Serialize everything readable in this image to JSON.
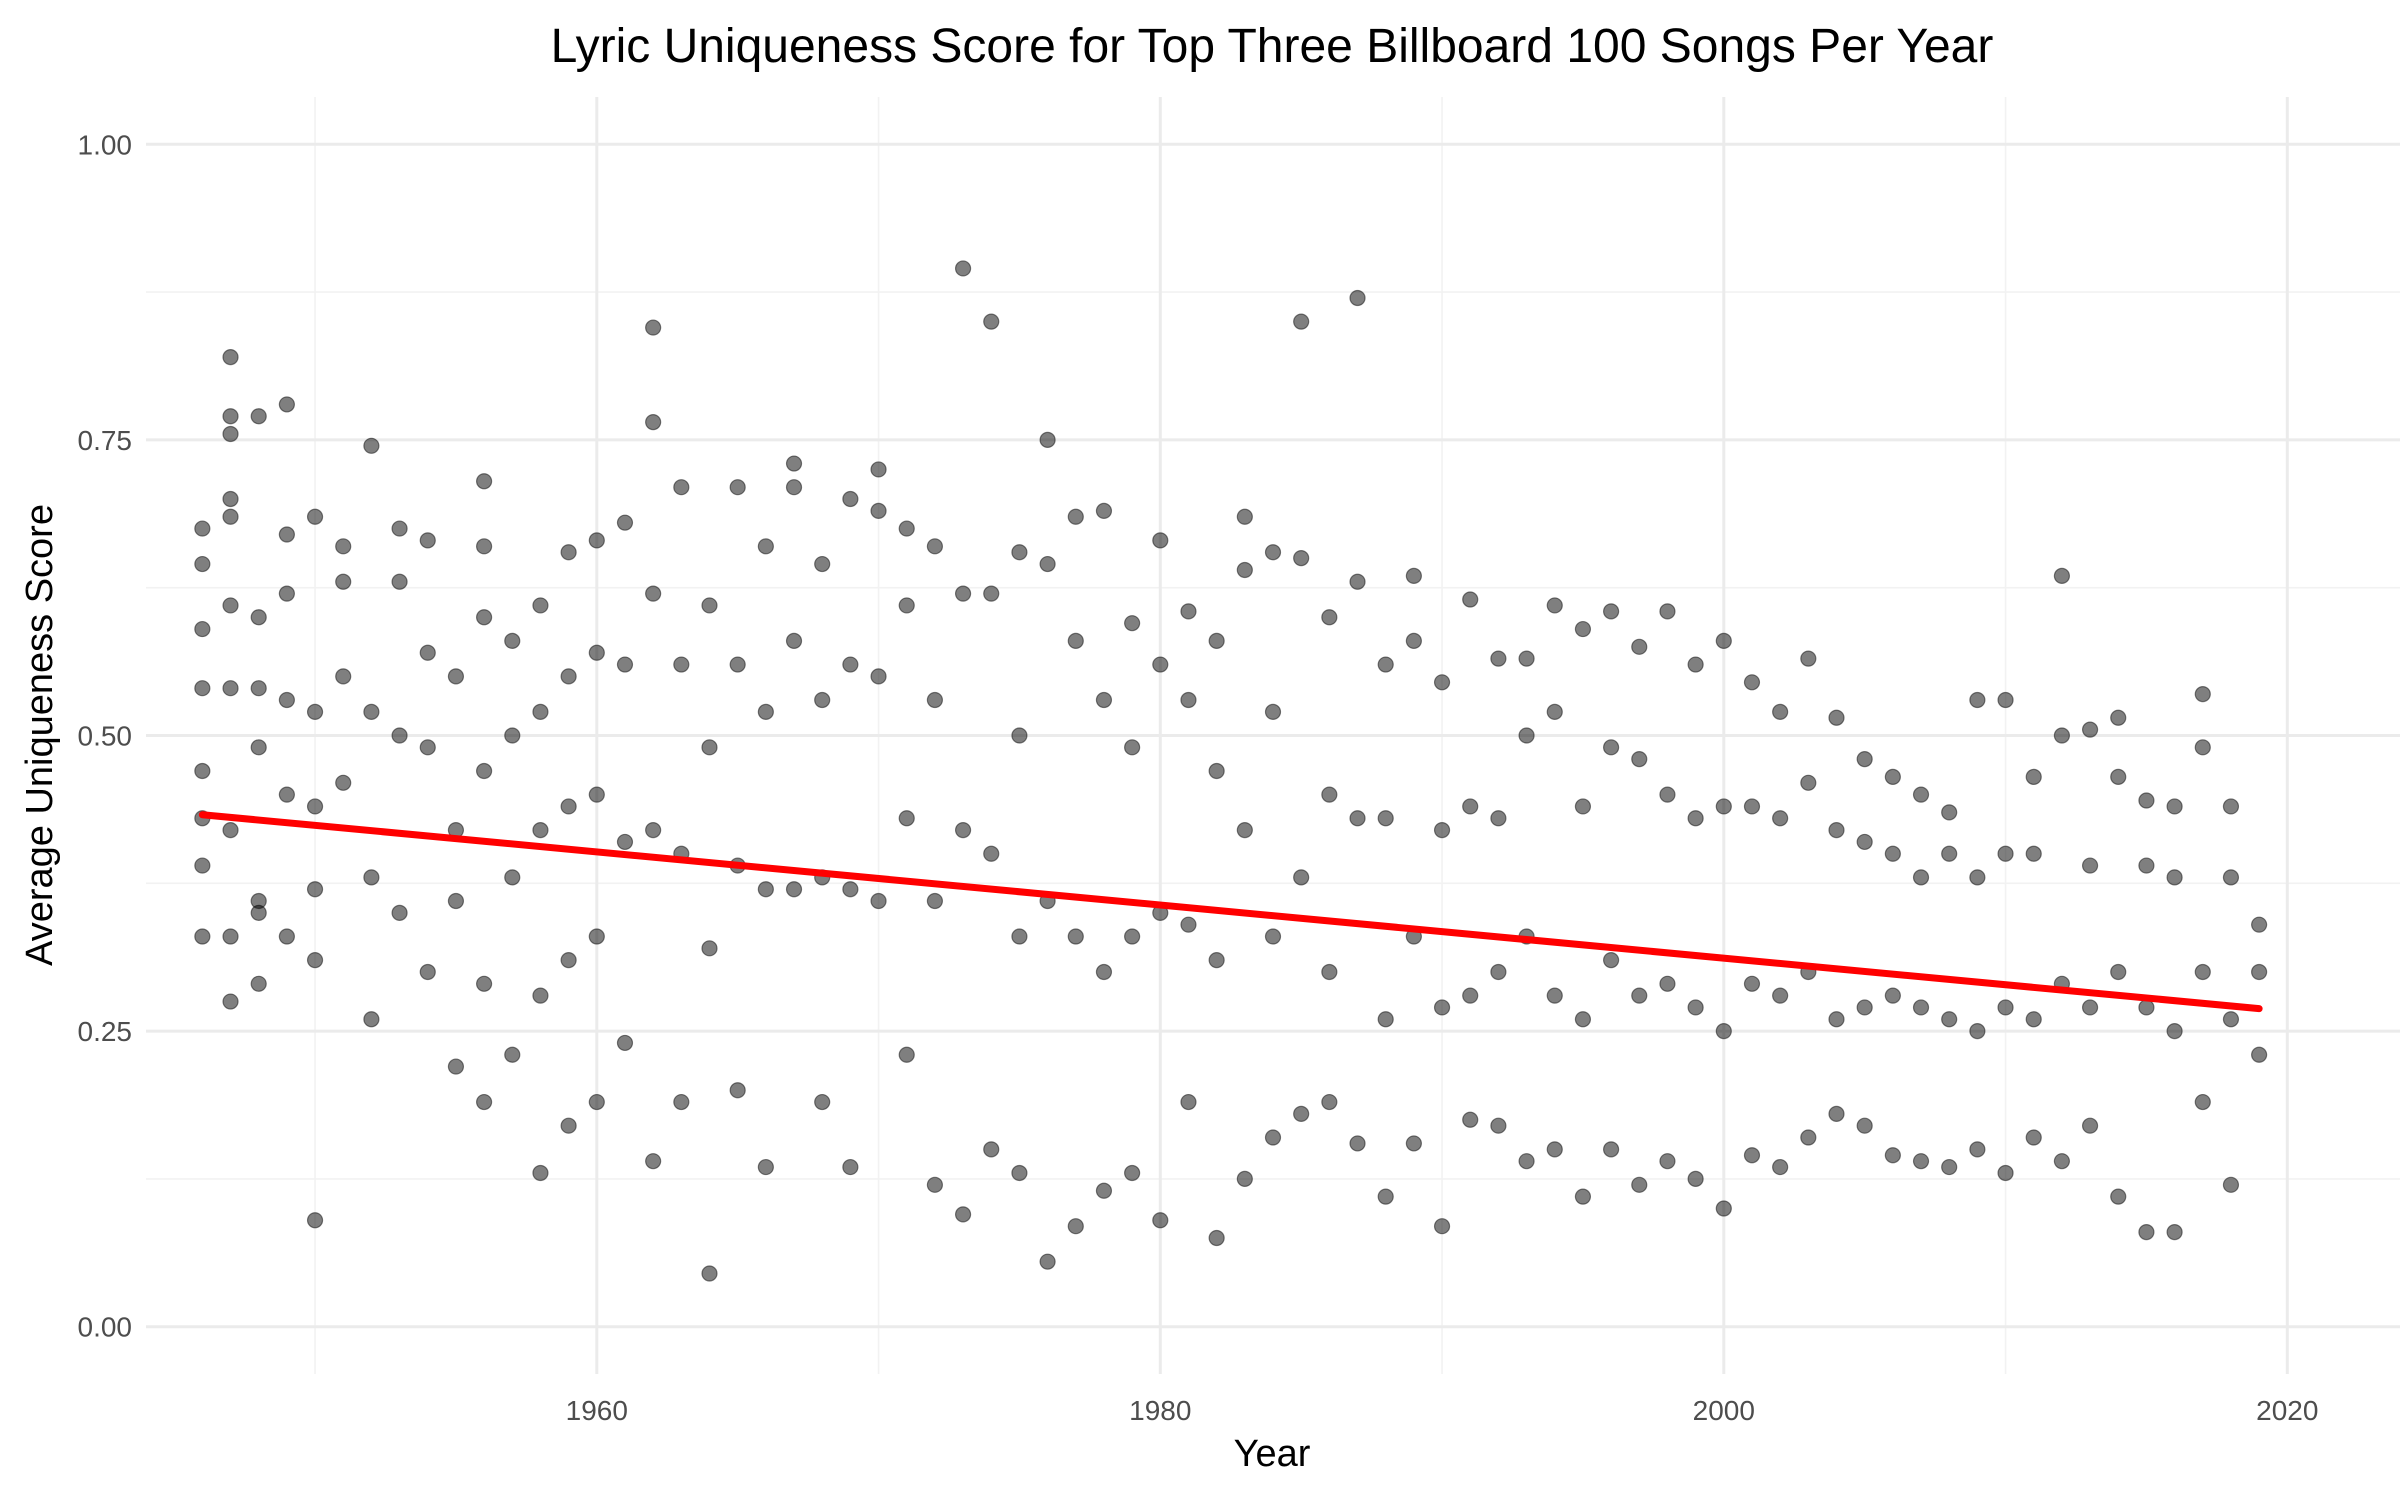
{
  "chart_data": {
    "type": "scatter",
    "title": "Lyric Uniqueness Score for Top Three Billboard 100 Songs Per Year",
    "xlabel": "Year",
    "ylabel": "Average Uniqueness Score",
    "xlim": [
      1944,
      2024
    ],
    "ylim": [
      -0.04,
      1.04
    ],
    "x_ticks": [
      1960,
      1980,
      2000,
      2020
    ],
    "x_tick_labels": [
      "1960",
      "1980",
      "2000",
      "2020"
    ],
    "y_ticks": [
      0.0,
      0.25,
      0.5,
      0.75,
      1.0
    ],
    "y_tick_labels": [
      "0.00",
      "0.25",
      "0.50",
      "0.75",
      "1.00"
    ],
    "grid": true,
    "legend": "none",
    "point_color": "#000000",
    "trend_color": "#ff0000",
    "series": [
      {
        "kind": "points",
        "x": [
          1946,
          1946,
          1946,
          1946,
          1946,
          1946,
          1946,
          1946,
          1947,
          1947,
          1947,
          1947,
          1947,
          1947,
          1947,
          1947,
          1947,
          1947,
          1948,
          1948,
          1948,
          1948,
          1948,
          1948,
          1948,
          1949,
          1949,
          1949,
          1949,
          1949,
          1949,
          1950,
          1950,
          1950,
          1950,
          1950,
          1950,
          1951,
          1951,
          1951,
          1951,
          1952,
          1952,
          1952,
          1952,
          1953,
          1953,
          1953,
          1953,
          1954,
          1954,
          1954,
          1954,
          1955,
          1955,
          1955,
          1955,
          1956,
          1956,
          1956,
          1956,
          1956,
          1956,
          1957,
          1957,
          1957,
          1957,
          1958,
          1958,
          1958,
          1958,
          1958,
          1959,
          1959,
          1959,
          1959,
          1959,
          1960,
          1960,
          1960,
          1960,
          1960,
          1961,
          1961,
          1961,
          1961,
          1962,
          1962,
          1962,
          1962,
          1962,
          1963,
          1963,
          1963,
          1963,
          1964,
          1964,
          1964,
          1964,
          1965,
          1965,
          1965,
          1965,
          1966,
          1966,
          1966,
          1966,
          1967,
          1967,
          1967,
          1967,
          1968,
          1968,
          1968,
          1968,
          1969,
          1969,
          1969,
          1969,
          1970,
          1970,
          1970,
          1970,
          1971,
          1971,
          1971,
          1971,
          1972,
          1972,
          1972,
          1972,
          1973,
          1973,
          1973,
          1973,
          1974,
          1974,
          1974,
          1974,
          1975,
          1975,
          1975,
          1975,
          1976,
          1976,
          1976,
          1976,
          1977,
          1977,
          1977,
          1977,
          1978,
          1978,
          1978,
          1978,
          1979,
          1979,
          1979,
          1979,
          1980,
          1980,
          1980,
          1980,
          1981,
          1981,
          1981,
          1981,
          1982,
          1982,
          1982,
          1982,
          1983,
          1983,
          1983,
          1983,
          1984,
          1984,
          1984,
          1984,
          1985,
          1985,
          1985,
          1985,
          1986,
          1986,
          1986,
          1986,
          1987,
          1987,
          1987,
          1987,
          1988,
          1988,
          1988,
          1988,
          1989,
          1989,
          1989,
          1989,
          1990,
          1990,
          1990,
          1990,
          1991,
          1991,
          1991,
          1991,
          1992,
          1992,
          1992,
          1992,
          1993,
          1993,
          1993,
          1993,
          1994,
          1994,
          1994,
          1994,
          1995,
          1995,
          1995,
          1995,
          1996,
          1996,
          1996,
          1996,
          1997,
          1997,
          1997,
          1997,
          1998,
          1998,
          1998,
          1998,
          1999,
          1999,
          1999,
          1999,
          2000,
          2000,
          2000,
          2000,
          2001,
          2001,
          2001,
          2001,
          2002,
          2002,
          2002,
          2002,
          2003,
          2003,
          2003,
          2003,
          2004,
          2004,
          2004,
          2004,
          2005,
          2005,
          2005,
          2005,
          2006,
          2006,
          2006,
          2006,
          2007,
          2007,
          2007,
          2007,
          2008,
          2008,
          2008,
          2008,
          2009,
          2009,
          2009,
          2009,
          2010,
          2010,
          2010,
          2010,
          2011,
          2011,
          2011,
          2011,
          2012,
          2012,
          2012,
          2012,
          2013,
          2013,
          2013,
          2013,
          2014,
          2014,
          2014,
          2014,
          2015,
          2015,
          2015,
          2015,
          2016,
          2016,
          2016,
          2016,
          2017,
          2017,
          2017,
          2017,
          2018,
          2018,
          2018,
          2018,
          2019,
          2019,
          2019
        ],
        "y": [
          0.675,
          0.645,
          0.59,
          0.54,
          0.47,
          0.43,
          0.39,
          0.33,
          0.82,
          0.77,
          0.755,
          0.7,
          0.685,
          0.61,
          0.54,
          0.42,
          0.33,
          0.275,
          0.77,
          0.6,
          0.54,
          0.49,
          0.35,
          0.29,
          0.36,
          0.78,
          0.67,
          0.62,
          0.53,
          0.45,
          0.33,
          0.685,
          0.52,
          0.44,
          0.37,
          0.31,
          0.09,
          0.66,
          0.63,
          0.55,
          0.46,
          0.745,
          0.52,
          0.38,
          0.26,
          0.675,
          0.63,
          0.5,
          0.35,
          0.665,
          0.57,
          0.49,
          0.3,
          0.55,
          0.42,
          0.36,
          0.22,
          0.715,
          0.66,
          0.6,
          0.47,
          0.29,
          0.19,
          0.58,
          0.5,
          0.38,
          0.23,
          0.61,
          0.52,
          0.42,
          0.28,
          0.13,
          0.655,
          0.55,
          0.44,
          0.31,
          0.17,
          0.665,
          0.57,
          0.45,
          0.33,
          0.19,
          0.68,
          0.56,
          0.41,
          0.24,
          0.845,
          0.765,
          0.62,
          0.42,
          0.14,
          0.71,
          0.56,
          0.4,
          0.19,
          0.61,
          0.49,
          0.32,
          0.045,
          0.71,
          0.56,
          0.39,
          0.2,
          0.66,
          0.52,
          0.37,
          0.135,
          0.73,
          0.71,
          0.58,
          0.37,
          0.645,
          0.53,
          0.38,
          0.19,
          0.7,
          0.56,
          0.37,
          0.135,
          0.725,
          0.69,
          0.55,
          0.36,
          0.675,
          0.61,
          0.43,
          0.23,
          0.66,
          0.53,
          0.36,
          0.12,
          0.895,
          0.62,
          0.42,
          0.095,
          0.85,
          0.62,
          0.4,
          0.15,
          0.655,
          0.5,
          0.33,
          0.13,
          0.75,
          0.645,
          0.36,
          0.055,
          0.685,
          0.58,
          0.33,
          0.085,
          0.69,
          0.53,
          0.3,
          0.115,
          0.595,
          0.49,
          0.33,
          0.13,
          0.665,
          0.56,
          0.35,
          0.09,
          0.605,
          0.53,
          0.34,
          0.19,
          0.58,
          0.47,
          0.31,
          0.075,
          0.685,
          0.64,
          0.42,
          0.125,
          0.655,
          0.52,
          0.33,
          0.16,
          0.85,
          0.65,
          0.38,
          0.18,
          0.6,
          0.45,
          0.3,
          0.19,
          0.87,
          0.63,
          0.43,
          0.155,
          0.56,
          0.43,
          0.26,
          0.11,
          0.635,
          0.58,
          0.33,
          0.155,
          0.545,
          0.42,
          0.27,
          0.085,
          0.615,
          0.44,
          0.28,
          0.175,
          0.565,
          0.43,
          0.3,
          0.17,
          0.565,
          0.5,
          0.33,
          0.14,
          0.61,
          0.52,
          0.28,
          0.15,
          0.59,
          0.44,
          0.26,
          0.11,
          0.605,
          0.49,
          0.31,
          0.15,
          0.575,
          0.48,
          0.28,
          0.12,
          0.605,
          0.45,
          0.29,
          0.14,
          0.56,
          0.43,
          0.27,
          0.125,
          0.58,
          0.44,
          0.25,
          0.1,
          0.545,
          0.44,
          0.29,
          0.145,
          0.52,
          0.43,
          0.28,
          0.135,
          0.565,
          0.46,
          0.3,
          0.16,
          0.515,
          0.42,
          0.26,
          0.18,
          0.48,
          0.41,
          0.27,
          0.17,
          0.465,
          0.4,
          0.28,
          0.145,
          0.45,
          0.38,
          0.27,
          0.14,
          0.435,
          0.4,
          0.26,
          0.135,
          0.53,
          0.38,
          0.25,
          0.15,
          0.53,
          0.4,
          0.27,
          0.13,
          0.465,
          0.4,
          0.26,
          0.16,
          0.635,
          0.5,
          0.29,
          0.14,
          0.505,
          0.39,
          0.27,
          0.17,
          0.515,
          0.465,
          0.3,
          0.11,
          0.445,
          0.39,
          0.27,
          0.08,
          0.44,
          0.38,
          0.25,
          0.08,
          0.535,
          0.49,
          0.3,
          0.19,
          0.44,
          0.38,
          0.26,
          0.12,
          0.34,
          0.3,
          0.23
        ]
      },
      {
        "kind": "trend",
        "name": "",
        "x": [
          1946,
          2019
        ],
        "y": [
          0.433,
          0.269
        ]
      }
    ]
  }
}
